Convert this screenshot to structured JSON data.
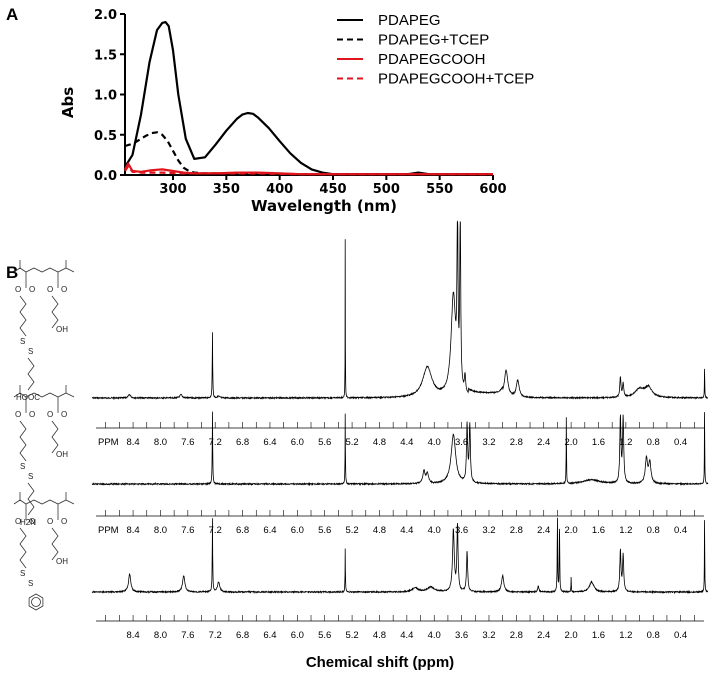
{
  "panel_a_label": "A",
  "panel_b_label": "B",
  "colors": {
    "black": "#000000",
    "red": "#e0141c"
  },
  "structures": [
    {
      "name": "COOH-terminated polymer",
      "labels": [
        "HOOC",
        "OH"
      ]
    },
    {
      "name": "amine-terminated polymer",
      "labels": [
        "H2N",
        "OH"
      ]
    },
    {
      "name": "phenyl-terminated polymer",
      "labels": [
        "OH"
      ]
    }
  ],
  "chart_data": [
    {
      "type": "line",
      "panel": "A",
      "xlabel": "Wavelength (nm)",
      "ylabel": "Abs",
      "xlim": [
        255,
        600
      ],
      "ylim": [
        0,
        2.0
      ],
      "xticks": [
        300,
        350,
        400,
        450,
        500,
        550,
        600
      ],
      "yticks": [
        0.0,
        0.5,
        1.0,
        1.5,
        2.0
      ],
      "ytick_labels": [
        "0.0",
        "0.5",
        "1.0",
        "1.5",
        "2.0"
      ],
      "legend_position": "top-right",
      "series": [
        {
          "name": "PDAPEG",
          "color": "#000000",
          "dash": "solid",
          "x": [
            255,
            262,
            270,
            278,
            285,
            290,
            293,
            296,
            300,
            305,
            312,
            320,
            330,
            340,
            350,
            360,
            365,
            370,
            375,
            380,
            390,
            400,
            410,
            420,
            430,
            440,
            450,
            460,
            480,
            500,
            520,
            530,
            540,
            560,
            580,
            600
          ],
          "y": [
            0.1,
            0.25,
            0.75,
            1.4,
            1.8,
            1.89,
            1.9,
            1.85,
            1.55,
            1.0,
            0.45,
            0.2,
            0.22,
            0.38,
            0.55,
            0.7,
            0.75,
            0.77,
            0.76,
            0.71,
            0.58,
            0.42,
            0.27,
            0.15,
            0.07,
            0.03,
            0.01,
            0.01,
            0.01,
            0.01,
            0.01,
            0.03,
            0.01,
            0.01,
            0.01,
            0.01
          ]
        },
        {
          "name": "PDAPEG+TCEP",
          "color": "#000000",
          "dash": "dashed",
          "x": [
            255,
            260,
            265,
            270,
            275,
            280,
            285,
            290,
            295,
            300,
            305,
            310,
            315,
            320,
            330,
            340,
            360,
            400,
            450,
            500,
            600
          ],
          "y": [
            0.36,
            0.38,
            0.41,
            0.45,
            0.49,
            0.52,
            0.53,
            0.5,
            0.42,
            0.3,
            0.18,
            0.09,
            0.05,
            0.03,
            0.02,
            0.02,
            0.02,
            0.01,
            0.01,
            0.01,
            0.01
          ]
        },
        {
          "name": "PDAPEGCOOH",
          "color": "#e0141c",
          "dash": "solid",
          "x": [
            255,
            258,
            262,
            270,
            280,
            290,
            300,
            310,
            320,
            340,
            360,
            380,
            400,
            420,
            440,
            460,
            500,
            600
          ],
          "y": [
            0.07,
            0.14,
            0.05,
            0.04,
            0.06,
            0.07,
            0.05,
            0.03,
            0.02,
            0.02,
            0.03,
            0.03,
            0.02,
            0.01,
            0.01,
            0.01,
            0.01,
            0.01
          ]
        },
        {
          "name": "PDAPEGCOOH+TCEP",
          "color": "#e0141c",
          "dash": "dashed",
          "x": [
            255,
            258,
            262,
            270,
            290,
            310,
            340,
            380,
            420,
            460,
            500,
            600
          ],
          "y": [
            0.05,
            0.11,
            0.04,
            0.03,
            0.03,
            0.02,
            0.02,
            0.02,
            0.01,
            0.01,
            0.01,
            0.01
          ]
        }
      ]
    },
    {
      "type": "line",
      "panel": "B",
      "xlabel": "Chemical shift (ppm)",
      "x_reversed": true,
      "xlim": [
        9.0,
        0.0
      ],
      "axis_prefix": "PPM",
      "xticks": [
        8.4,
        8.0,
        7.6,
        7.2,
        6.8,
        6.4,
        6.0,
        5.6,
        5.2,
        4.8,
        4.4,
        4.0,
        3.6,
        3.2,
        2.8,
        2.4,
        2.0,
        1.6,
        1.2,
        0.8,
        0.4
      ],
      "xtick_labels": [
        "8.4",
        "8.0",
        "7.6",
        "7.2",
        "6.8",
        "6.4",
        "6.0",
        "5.6",
        "5.2",
        "4.8",
        "4.4",
        "4.0",
        "3.6",
        "3.2",
        "2.8",
        "2.4",
        "2.0",
        "1.6",
        "1.2",
        "0.8",
        "0.4"
      ],
      "spectra": [
        {
          "name": "COOH-terminated",
          "peaks": [
            {
              "ppm": 8.45,
              "h": 0.02,
              "w": 0.02
            },
            {
              "ppm": 7.7,
              "h": 0.02,
              "w": 0.02
            },
            {
              "ppm": 7.24,
              "h": 0.4,
              "w": 0.004
            },
            {
              "ppm": 7.15,
              "h": 0.01,
              "w": 0.02
            },
            {
              "ppm": 5.3,
              "h": 1.0,
              "w": 0.002
            },
            {
              "ppm": 4.1,
              "h": 0.18,
              "w": 0.08
            },
            {
              "ppm": 3.72,
              "h": 0.6,
              "w": 0.04
            },
            {
              "ppm": 3.66,
              "h": 1.05,
              "w": 0.008
            },
            {
              "ppm": 3.62,
              "h": 1.05,
              "w": 0.008
            },
            {
              "ppm": 3.55,
              "h": 0.1,
              "w": 0.01
            },
            {
              "ppm": 2.95,
              "h": 0.16,
              "w": 0.03
            },
            {
              "ppm": 2.78,
              "h": 0.1,
              "w": 0.025
            },
            {
              "ppm": 1.28,
              "h": 0.12,
              "w": 0.01
            },
            {
              "ppm": 1.24,
              "h": 0.08,
              "w": 0.01
            },
            {
              "ppm": 1.0,
              "h": 0.05,
              "w": 0.08
            },
            {
              "ppm": 0.87,
              "h": 0.06,
              "w": 0.06
            },
            {
              "ppm": 0.05,
              "h": 0.18,
              "w": 0.003
            }
          ]
        },
        {
          "name": "amine-terminated",
          "peaks": [
            {
              "ppm": 7.24,
              "h": 0.9,
              "w": 0.004
            },
            {
              "ppm": 5.3,
              "h": 0.88,
              "w": 0.003
            },
            {
              "ppm": 4.15,
              "h": 0.15,
              "w": 0.02
            },
            {
              "ppm": 4.1,
              "h": 0.12,
              "w": 0.02
            },
            {
              "ppm": 3.72,
              "h": 0.6,
              "w": 0.04
            },
            {
              "ppm": 3.52,
              "h": 0.7,
              "w": 0.01
            },
            {
              "ppm": 3.48,
              "h": 0.7,
              "w": 0.01
            },
            {
              "ppm": 2.07,
              "h": 0.8,
              "w": 0.003
            },
            {
              "ppm": 1.7,
              "h": 0.05,
              "w": 0.15
            },
            {
              "ppm": 1.28,
              "h": 0.8,
              "w": 0.01
            },
            {
              "ppm": 1.24,
              "h": 0.8,
              "w": 0.01
            },
            {
              "ppm": 0.9,
              "h": 0.3,
              "w": 0.02
            },
            {
              "ppm": 0.85,
              "h": 0.25,
              "w": 0.02
            },
            {
              "ppm": 0.05,
              "h": 0.9,
              "w": 0.003
            }
          ]
        },
        {
          "name": "phenyl-terminated",
          "peaks": [
            {
              "ppm": 8.45,
              "h": 0.22,
              "w": 0.02
            },
            {
              "ppm": 7.66,
              "h": 0.2,
              "w": 0.02
            },
            {
              "ppm": 7.24,
              "h": 0.9,
              "w": 0.004
            },
            {
              "ppm": 7.15,
              "h": 0.12,
              "w": 0.02
            },
            {
              "ppm": 5.3,
              "h": 0.55,
              "w": 0.003
            },
            {
              "ppm": 4.28,
              "h": 0.05,
              "w": 0.05
            },
            {
              "ppm": 4.05,
              "h": 0.06,
              "w": 0.06
            },
            {
              "ppm": 3.72,
              "h": 0.75,
              "w": 0.015
            },
            {
              "ppm": 3.66,
              "h": 0.8,
              "w": 0.01
            },
            {
              "ppm": 3.52,
              "h": 0.5,
              "w": 0.01
            },
            {
              "ppm": 3.0,
              "h": 0.2,
              "w": 0.02
            },
            {
              "ppm": 2.48,
              "h": 0.08,
              "w": 0.01
            },
            {
              "ppm": 2.2,
              "h": 0.9,
              "w": 0.004
            },
            {
              "ppm": 2.17,
              "h": 0.85,
              "w": 0.004
            },
            {
              "ppm": 2.0,
              "h": 0.18,
              "w": 0.003
            },
            {
              "ppm": 1.7,
              "h": 0.12,
              "w": 0.04
            },
            {
              "ppm": 1.28,
              "h": 0.5,
              "w": 0.01
            },
            {
              "ppm": 1.24,
              "h": 0.45,
              "w": 0.01
            },
            {
              "ppm": 0.05,
              "h": 0.9,
              "w": 0.003
            }
          ]
        }
      ]
    }
  ]
}
